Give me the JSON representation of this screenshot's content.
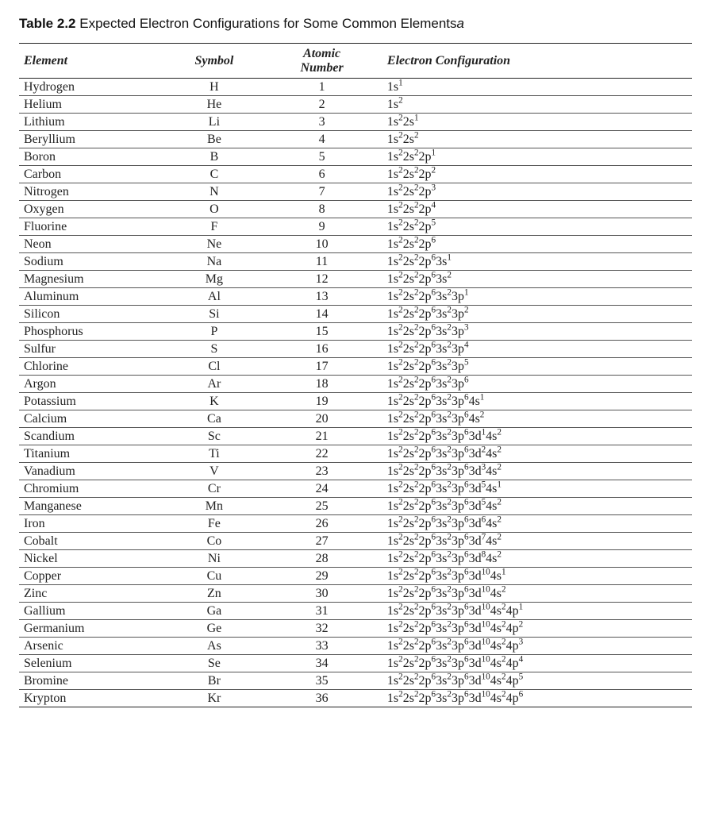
{
  "caption": {
    "label": "Table 2.2",
    "text": "Expected Electron Configurations for Some Common Elements",
    "trailing_ref": "a"
  },
  "table": {
    "type": "table",
    "columns": [
      {
        "key": "element",
        "header": "Element",
        "align": "left"
      },
      {
        "key": "symbol",
        "header": "Symbol",
        "align": "center"
      },
      {
        "key": "number",
        "header_lines": [
          "Atomic",
          "Number"
        ],
        "align": "center"
      },
      {
        "key": "config",
        "header": "Electron Configuration",
        "align": "left"
      }
    ],
    "column_widths_pct": [
      22,
      14,
      18,
      46
    ],
    "border_color": "#222222",
    "row_border_color": "#555555",
    "header_font": {
      "family": "Times New Roman",
      "style": "bold-italic",
      "size_pt": 12
    },
    "body_font": {
      "family": "Times New Roman",
      "size_pt": 12
    },
    "rows": [
      {
        "element": "Hydrogen",
        "symbol": "H",
        "number": 1,
        "config": [
          [
            "1s",
            1
          ]
        ]
      },
      {
        "element": "Helium",
        "symbol": "He",
        "number": 2,
        "config": [
          [
            "1s",
            2
          ]
        ]
      },
      {
        "element": "Lithium",
        "symbol": "Li",
        "number": 3,
        "config": [
          [
            "1s",
            2
          ],
          [
            "2s",
            1
          ]
        ]
      },
      {
        "element": "Beryllium",
        "symbol": "Be",
        "number": 4,
        "config": [
          [
            "1s",
            2
          ],
          [
            "2s",
            2
          ]
        ]
      },
      {
        "element": "Boron",
        "symbol": "B",
        "number": 5,
        "config": [
          [
            "1s",
            2
          ],
          [
            "2s",
            2
          ],
          [
            "2p",
            1
          ]
        ]
      },
      {
        "element": "Carbon",
        "symbol": "C",
        "number": 6,
        "config": [
          [
            "1s",
            2
          ],
          [
            "2s",
            2
          ],
          [
            "2p",
            2
          ]
        ]
      },
      {
        "element": "Nitrogen",
        "symbol": "N",
        "number": 7,
        "config": [
          [
            "1s",
            2
          ],
          [
            "2s",
            2
          ],
          [
            "2p",
            3
          ]
        ]
      },
      {
        "element": "Oxygen",
        "symbol": "O",
        "number": 8,
        "config": [
          [
            "1s",
            2
          ],
          [
            "2s",
            2
          ],
          [
            "2p",
            4
          ]
        ]
      },
      {
        "element": "Fluorine",
        "symbol": "F",
        "number": 9,
        "config": [
          [
            "1s",
            2
          ],
          [
            "2s",
            2
          ],
          [
            "2p",
            5
          ]
        ]
      },
      {
        "element": "Neon",
        "symbol": "Ne",
        "number": 10,
        "config": [
          [
            "1s",
            2
          ],
          [
            "2s",
            2
          ],
          [
            "2p",
            6
          ]
        ]
      },
      {
        "element": "Sodium",
        "symbol": "Na",
        "number": 11,
        "config": [
          [
            "1s",
            2
          ],
          [
            "2s",
            2
          ],
          [
            "2p",
            6
          ],
          [
            "3s",
            1
          ]
        ]
      },
      {
        "element": "Magnesium",
        "symbol": "Mg",
        "number": 12,
        "config": [
          [
            "1s",
            2
          ],
          [
            "2s",
            2
          ],
          [
            "2p",
            6
          ],
          [
            "3s",
            2
          ]
        ]
      },
      {
        "element": "Aluminum",
        "symbol": "Al",
        "number": 13,
        "config": [
          [
            "1s",
            2
          ],
          [
            "2s",
            2
          ],
          [
            "2p",
            6
          ],
          [
            "3s",
            2
          ],
          [
            "3p",
            1
          ]
        ]
      },
      {
        "element": "Silicon",
        "symbol": "Si",
        "number": 14,
        "config": [
          [
            "1s",
            2
          ],
          [
            "2s",
            2
          ],
          [
            "2p",
            6
          ],
          [
            "3s",
            2
          ],
          [
            "3p",
            2
          ]
        ]
      },
      {
        "element": "Phosphorus",
        "symbol": "P",
        "number": 15,
        "config": [
          [
            "1s",
            2
          ],
          [
            "2s",
            2
          ],
          [
            "2p",
            6
          ],
          [
            "3s",
            2
          ],
          [
            "3p",
            3
          ]
        ]
      },
      {
        "element": "Sulfur",
        "symbol": "S",
        "number": 16,
        "config": [
          [
            "1s",
            2
          ],
          [
            "2s",
            2
          ],
          [
            "2p",
            6
          ],
          [
            "3s",
            2
          ],
          [
            "3p",
            4
          ]
        ]
      },
      {
        "element": "Chlorine",
        "symbol": "Cl",
        "number": 17,
        "config": [
          [
            "1s",
            2
          ],
          [
            "2s",
            2
          ],
          [
            "2p",
            6
          ],
          [
            "3s",
            2
          ],
          [
            "3p",
            5
          ]
        ]
      },
      {
        "element": "Argon",
        "symbol": "Ar",
        "number": 18,
        "config": [
          [
            "1s",
            2
          ],
          [
            "2s",
            2
          ],
          [
            "2p",
            6
          ],
          [
            "3s",
            2
          ],
          [
            "3p",
            6
          ]
        ]
      },
      {
        "element": "Potassium",
        "symbol": "K",
        "number": 19,
        "config": [
          [
            "1s",
            2
          ],
          [
            "2s",
            2
          ],
          [
            "2p",
            6
          ],
          [
            "3s",
            2
          ],
          [
            "3p",
            6
          ],
          [
            "4s",
            1
          ]
        ]
      },
      {
        "element": "Calcium",
        "symbol": "Ca",
        "number": 20,
        "config": [
          [
            "1s",
            2
          ],
          [
            "2s",
            2
          ],
          [
            "2p",
            6
          ],
          [
            "3s",
            2
          ],
          [
            "3p",
            6
          ],
          [
            "4s",
            2
          ]
        ]
      },
      {
        "element": "Scandium",
        "symbol": "Sc",
        "number": 21,
        "config": [
          [
            "1s",
            2
          ],
          [
            "2s",
            2
          ],
          [
            "2p",
            6
          ],
          [
            "3s",
            2
          ],
          [
            "3p",
            6
          ],
          [
            "3d",
            1
          ],
          [
            "4s",
            2
          ]
        ]
      },
      {
        "element": "Titanium",
        "symbol": "Ti",
        "number": 22,
        "config": [
          [
            "1s",
            2
          ],
          [
            "2s",
            2
          ],
          [
            "2p",
            6
          ],
          [
            "3s",
            2
          ],
          [
            "3p",
            6
          ],
          [
            "3d",
            2
          ],
          [
            "4s",
            2
          ]
        ]
      },
      {
        "element": "Vanadium",
        "symbol": "V",
        "number": 23,
        "config": [
          [
            "1s",
            2
          ],
          [
            "2s",
            2
          ],
          [
            "2p",
            6
          ],
          [
            "3s",
            2
          ],
          [
            "3p",
            6
          ],
          [
            "3d",
            3
          ],
          [
            "4s",
            2
          ]
        ]
      },
      {
        "element": "Chromium",
        "symbol": "Cr",
        "number": 24,
        "config": [
          [
            "1s",
            2
          ],
          [
            "2s",
            2
          ],
          [
            "2p",
            6
          ],
          [
            "3s",
            2
          ],
          [
            "3p",
            6
          ],
          [
            "3d",
            5
          ],
          [
            "4s",
            1
          ]
        ]
      },
      {
        "element": "Manganese",
        "symbol": "Mn",
        "number": 25,
        "config": [
          [
            "1s",
            2
          ],
          [
            "2s",
            2
          ],
          [
            "2p",
            6
          ],
          [
            "3s",
            2
          ],
          [
            "3p",
            6
          ],
          [
            "3d",
            5
          ],
          [
            "4s",
            2
          ]
        ]
      },
      {
        "element": "Iron",
        "symbol": "Fe",
        "number": 26,
        "config": [
          [
            "1s",
            2
          ],
          [
            "2s",
            2
          ],
          [
            "2p",
            6
          ],
          [
            "3s",
            2
          ],
          [
            "3p",
            6
          ],
          [
            "3d",
            6
          ],
          [
            "4s",
            2
          ]
        ]
      },
      {
        "element": "Cobalt",
        "symbol": "Co",
        "number": 27,
        "config": [
          [
            "1s",
            2
          ],
          [
            "2s",
            2
          ],
          [
            "2p",
            6
          ],
          [
            "3s",
            2
          ],
          [
            "3p",
            6
          ],
          [
            "3d",
            7
          ],
          [
            "4s",
            2
          ]
        ]
      },
      {
        "element": "Nickel",
        "symbol": "Ni",
        "number": 28,
        "config": [
          [
            "1s",
            2
          ],
          [
            "2s",
            2
          ],
          [
            "2p",
            6
          ],
          [
            "3s",
            2
          ],
          [
            "3p",
            6
          ],
          [
            "3d",
            8
          ],
          [
            "4s",
            2
          ]
        ]
      },
      {
        "element": "Copper",
        "symbol": "Cu",
        "number": 29,
        "config": [
          [
            "1s",
            2
          ],
          [
            "2s",
            2
          ],
          [
            "2p",
            6
          ],
          [
            "3s",
            2
          ],
          [
            "3p",
            6
          ],
          [
            "3d",
            10
          ],
          [
            "4s",
            1
          ]
        ]
      },
      {
        "element": "Zinc",
        "symbol": "Zn",
        "number": 30,
        "config": [
          [
            "1s",
            2
          ],
          [
            "2s",
            2
          ],
          [
            "2p",
            6
          ],
          [
            "3s",
            2
          ],
          [
            "3p",
            6
          ],
          [
            "3d",
            10
          ],
          [
            "4s",
            2
          ]
        ]
      },
      {
        "element": "Gallium",
        "symbol": "Ga",
        "number": 31,
        "config": [
          [
            "1s",
            2
          ],
          [
            "2s",
            2
          ],
          [
            "2p",
            6
          ],
          [
            "3s",
            2
          ],
          [
            "3p",
            6
          ],
          [
            "3d",
            10
          ],
          [
            "4s",
            2
          ],
          [
            "4p",
            1
          ]
        ]
      },
      {
        "element": "Germanium",
        "symbol": "Ge",
        "number": 32,
        "config": [
          [
            "1s",
            2
          ],
          [
            "2s",
            2
          ],
          [
            "2p",
            6
          ],
          [
            "3s",
            2
          ],
          [
            "3p",
            6
          ],
          [
            "3d",
            10
          ],
          [
            "4s",
            2
          ],
          [
            "4p",
            2
          ]
        ]
      },
      {
        "element": "Arsenic",
        "symbol": "As",
        "number": 33,
        "config": [
          [
            "1s",
            2
          ],
          [
            "2s",
            2
          ],
          [
            "2p",
            6
          ],
          [
            "3s",
            2
          ],
          [
            "3p",
            6
          ],
          [
            "3d",
            10
          ],
          [
            "4s",
            2
          ],
          [
            "4p",
            3
          ]
        ]
      },
      {
        "element": "Selenium",
        "symbol": "Se",
        "number": 34,
        "config": [
          [
            "1s",
            2
          ],
          [
            "2s",
            2
          ],
          [
            "2p",
            6
          ],
          [
            "3s",
            2
          ],
          [
            "3p",
            6
          ],
          [
            "3d",
            10
          ],
          [
            "4s",
            2
          ],
          [
            "4p",
            4
          ]
        ]
      },
      {
        "element": "Bromine",
        "symbol": "Br",
        "number": 35,
        "config": [
          [
            "1s",
            2
          ],
          [
            "2s",
            2
          ],
          [
            "2p",
            6
          ],
          [
            "3s",
            2
          ],
          [
            "3p",
            6
          ],
          [
            "3d",
            10
          ],
          [
            "4s",
            2
          ],
          [
            "4p",
            5
          ]
        ]
      },
      {
        "element": "Krypton",
        "symbol": "Kr",
        "number": 36,
        "config": [
          [
            "1s",
            2
          ],
          [
            "2s",
            2
          ],
          [
            "2p",
            6
          ],
          [
            "3s",
            2
          ],
          [
            "3p",
            6
          ],
          [
            "3d",
            10
          ],
          [
            "4s",
            2
          ],
          [
            "4p",
            6
          ]
        ]
      }
    ]
  }
}
